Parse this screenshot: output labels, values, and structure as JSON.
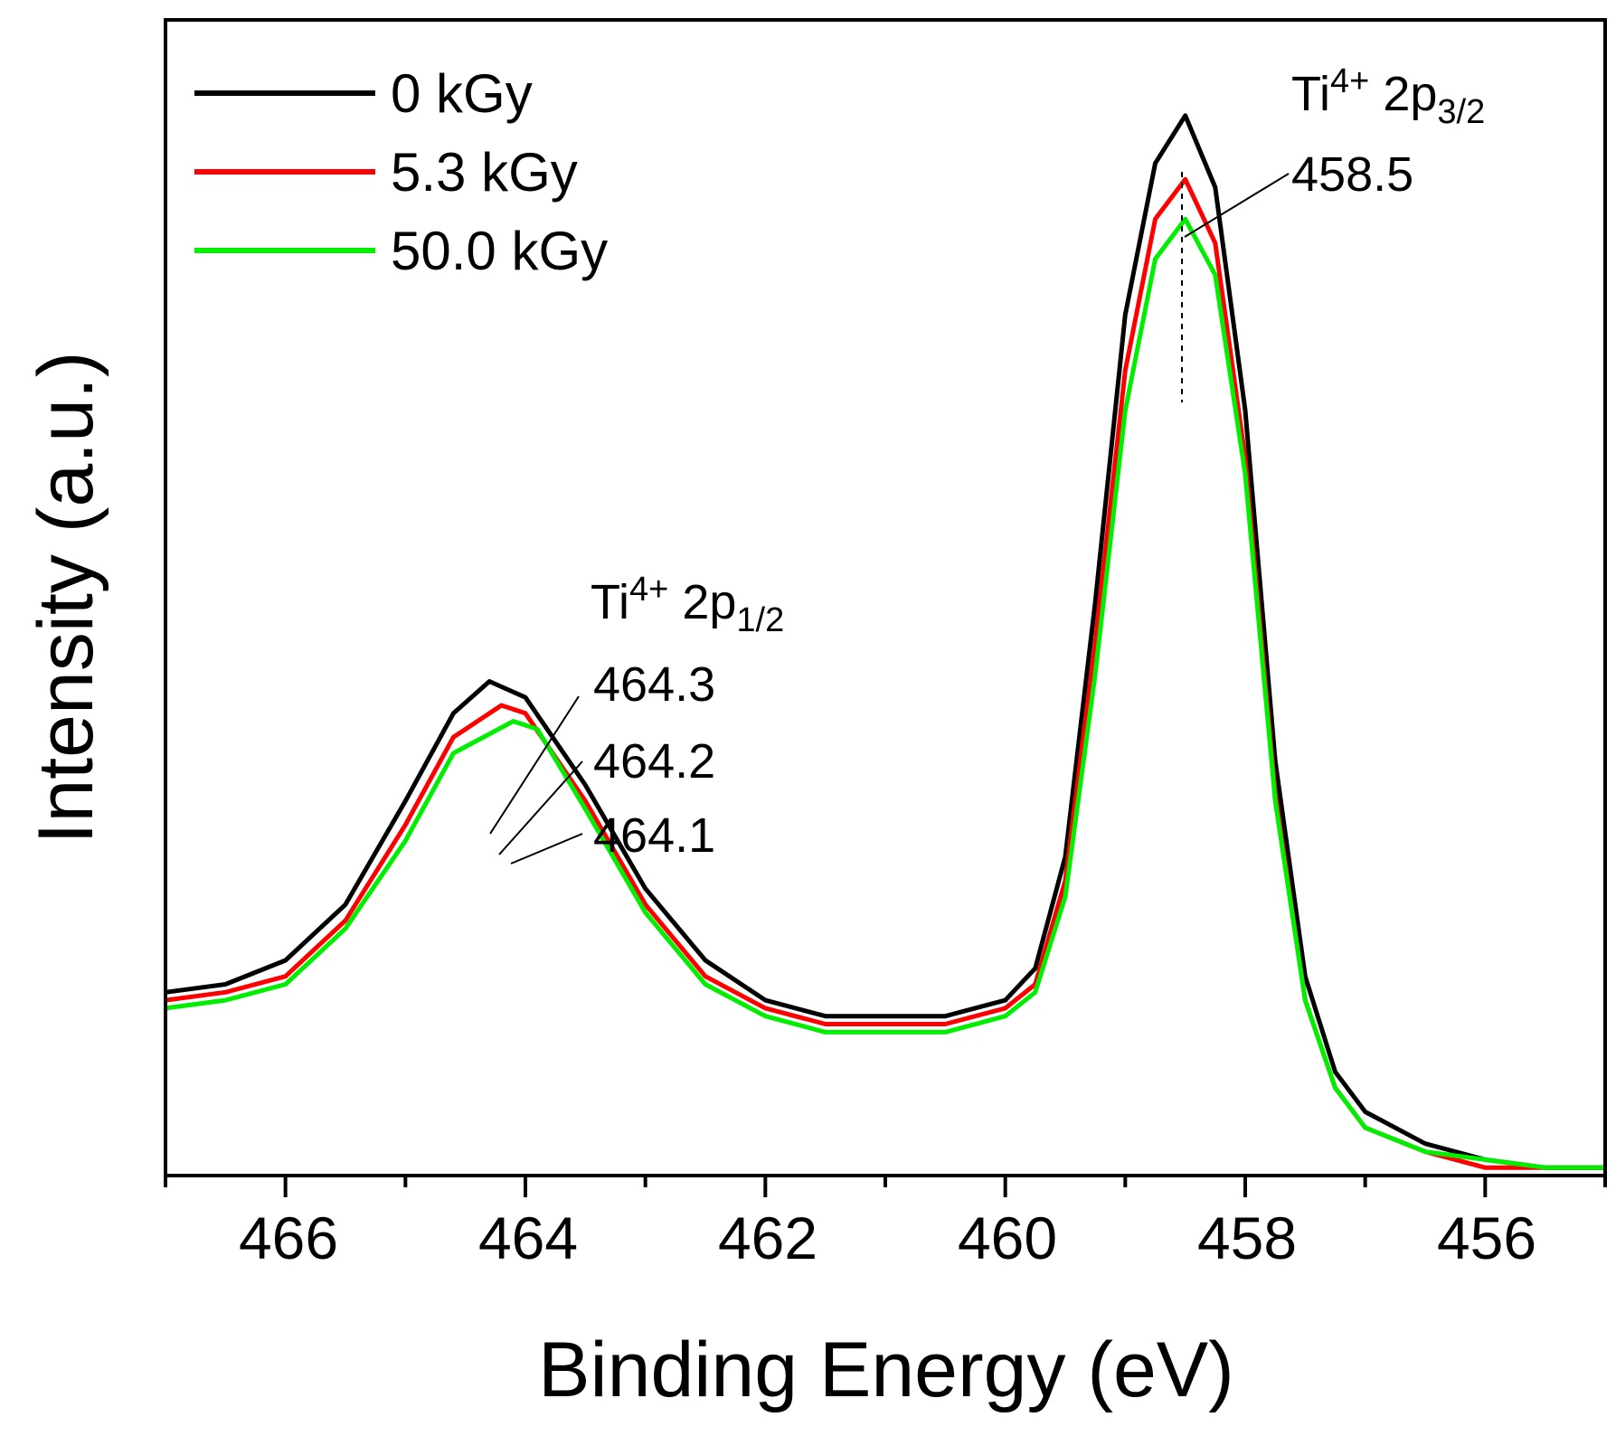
{
  "chart_data": {
    "type": "line",
    "title": "",
    "xlabel": "Binding Energy (eV)",
    "ylabel": "Intensity (a.u.)",
    "x_reversed": true,
    "xlim": [
      467.0,
      455.0
    ],
    "ylim": [
      -0.1,
      1.35
    ],
    "x_ticks": [
      466,
      464,
      462,
      460,
      458,
      456
    ],
    "x_tick_labels": [
      "466",
      "464",
      "462",
      "460",
      "458",
      "456"
    ],
    "y_ticks_shown": false,
    "legend_position": "top-left",
    "colors": {
      "s0": "#000000",
      "s1": "#ff0000",
      "s2": "#00ee00",
      "axis": "#000000"
    },
    "series": [
      {
        "name": "0 kGy",
        "color": "#000000",
        "points": [
          [
            467.0,
            0.13
          ],
          [
            466.5,
            0.14
          ],
          [
            466.0,
            0.17
          ],
          [
            465.5,
            0.24
          ],
          [
            465.0,
            0.37
          ],
          [
            464.6,
            0.48
          ],
          [
            464.3,
            0.52
          ],
          [
            464.0,
            0.5
          ],
          [
            463.5,
            0.39
          ],
          [
            463.0,
            0.26
          ],
          [
            462.5,
            0.17
          ],
          [
            462.0,
            0.12
          ],
          [
            461.5,
            0.1
          ],
          [
            461.0,
            0.1
          ],
          [
            460.5,
            0.1
          ],
          [
            460.0,
            0.12
          ],
          [
            459.75,
            0.16
          ],
          [
            459.5,
            0.3
          ],
          [
            459.25,
            0.62
          ],
          [
            459.0,
            0.98
          ],
          [
            458.75,
            1.17
          ],
          [
            458.5,
            1.23
          ],
          [
            458.25,
            1.14
          ],
          [
            458.0,
            0.86
          ],
          [
            457.75,
            0.42
          ],
          [
            457.5,
            0.15
          ],
          [
            457.25,
            0.03
          ],
          [
            457.0,
            -0.02
          ],
          [
            456.5,
            -0.06
          ],
          [
            456.0,
            -0.08
          ],
          [
            455.5,
            -0.09
          ],
          [
            455.0,
            -0.09
          ]
        ]
      },
      {
        "name": "5.3 kGy",
        "color": "#ff0000",
        "points": [
          [
            467.0,
            0.12
          ],
          [
            466.5,
            0.13
          ],
          [
            466.0,
            0.15
          ],
          [
            465.5,
            0.22
          ],
          [
            465.0,
            0.34
          ],
          [
            464.6,
            0.45
          ],
          [
            464.2,
            0.49
          ],
          [
            464.0,
            0.48
          ],
          [
            463.5,
            0.37
          ],
          [
            463.0,
            0.24
          ],
          [
            462.5,
            0.15
          ],
          [
            462.0,
            0.11
          ],
          [
            461.5,
            0.09
          ],
          [
            461.0,
            0.09
          ],
          [
            460.5,
            0.09
          ],
          [
            460.0,
            0.11
          ],
          [
            459.75,
            0.14
          ],
          [
            459.5,
            0.27
          ],
          [
            459.25,
            0.57
          ],
          [
            459.0,
            0.91
          ],
          [
            458.75,
            1.1
          ],
          [
            458.5,
            1.15
          ],
          [
            458.25,
            1.07
          ],
          [
            458.0,
            0.8
          ],
          [
            457.75,
            0.38
          ],
          [
            457.5,
            0.12
          ],
          [
            457.25,
            0.01
          ],
          [
            457.0,
            -0.04
          ],
          [
            456.5,
            -0.07
          ],
          [
            456.0,
            -0.09
          ],
          [
            455.5,
            -0.09
          ],
          [
            455.0,
            -0.09
          ]
        ]
      },
      {
        "name": "50.0 kGy",
        "color": "#00ee00",
        "points": [
          [
            467.0,
            0.11
          ],
          [
            466.5,
            0.12
          ],
          [
            466.0,
            0.14
          ],
          [
            465.5,
            0.21
          ],
          [
            465.0,
            0.32
          ],
          [
            464.6,
            0.43
          ],
          [
            464.1,
            0.47
          ],
          [
            463.9,
            0.46
          ],
          [
            463.5,
            0.36
          ],
          [
            463.0,
            0.23
          ],
          [
            462.5,
            0.14
          ],
          [
            462.0,
            0.1
          ],
          [
            461.5,
            0.08
          ],
          [
            461.0,
            0.08
          ],
          [
            460.5,
            0.08
          ],
          [
            460.0,
            0.1
          ],
          [
            459.75,
            0.13
          ],
          [
            459.5,
            0.25
          ],
          [
            459.25,
            0.53
          ],
          [
            459.0,
            0.86
          ],
          [
            458.75,
            1.05
          ],
          [
            458.5,
            1.1
          ],
          [
            458.25,
            1.03
          ],
          [
            458.0,
            0.78
          ],
          [
            457.75,
            0.37
          ],
          [
            457.5,
            0.12
          ],
          [
            457.25,
            0.01
          ],
          [
            457.0,
            -0.04
          ],
          [
            456.5,
            -0.07
          ],
          [
            456.0,
            -0.08
          ],
          [
            455.5,
            -0.09
          ],
          [
            455.0,
            -0.09
          ]
        ]
      }
    ],
    "annotations": [
      {
        "id": "peak-32",
        "text_main": "Ti",
        "sup": "4+",
        "text_mid": " 2p",
        "sub": "3/2",
        "value": "458.5",
        "x": 458.5
      },
      {
        "id": "peak-12",
        "text_main": "Ti",
        "sup": "4+",
        "text_mid": " 2p",
        "sub": "1/2",
        "values": [
          "464.3",
          "464.2",
          "464.1"
        ]
      }
    ]
  }
}
